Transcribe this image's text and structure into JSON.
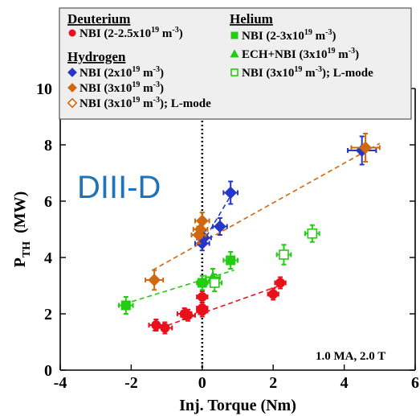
{
  "chart_data": {
    "type": "scatter",
    "title": "",
    "xlabel": "Inj. Torque (Nm)",
    "ylabel": "P",
    "ylabel_sub": "TH",
    "ylabel_unit": "(MW)",
    "xlim": [
      -4,
      6
    ],
    "ylim": [
      0,
      10
    ],
    "x_ticks": [
      "-4",
      "-2",
      "0",
      "2",
      "4",
      "6"
    ],
    "y_ticks": [
      "0",
      "2",
      "4",
      "6",
      "8",
      "10"
    ],
    "grid": false,
    "vertical_dotted_line_at_x": 0,
    "brand_label": "DIII-D",
    "annotation": "1.0 MA, 2.0 T",
    "legend": {
      "placement": "top",
      "groups": [
        {
          "heading": "Deuterium",
          "entries": [
            {
              "label": "NBI  (2-2.5x10",
              "exp": "19",
              "unit": " m",
              "unit_exp": "-3",
              "tail": ")",
              "marker": "circle",
              "color": "#e8101a",
              "filled": true
            }
          ]
        },
        {
          "heading": "Hydrogen",
          "entries": [
            {
              "label": "NBI (2x10",
              "exp": "19",
              "unit": " m",
              "unit_exp": "-3",
              "tail": ")",
              "marker": "diamond",
              "color": "#2536c8",
              "filled": true
            },
            {
              "label": "NBI (3x10",
              "exp": "19",
              "unit": " m",
              "unit_exp": "-3",
              "tail": ")",
              "marker": "diamond",
              "color": "#d2680e",
              "filled": true
            },
            {
              "label": "NBI (3x10",
              "exp": "19",
              "unit": " m",
              "unit_exp": "-3",
              "tail": "); L-mode",
              "marker": "diamond",
              "color": "#d2680e",
              "filled": false
            }
          ]
        },
        {
          "heading": "Helium",
          "entries": [
            {
              "label": "NBI  (2-3x10",
              "exp": "19",
              "unit": " m",
              "unit_exp": "-3",
              "tail": ")",
              "marker": "square",
              "color": "#22cc11",
              "filled": true
            },
            {
              "label": "ECH+NBI  (3x10",
              "exp": "19",
              "unit": " m",
              "unit_exp": "-3",
              "tail": ")",
              "marker": "triangle",
              "color": "#22cc11",
              "filled": true
            },
            {
              "label": "NBI  (3x10",
              "exp": "19",
              "unit": " m",
              "unit_exp": "-3",
              "tail": "); L-mode",
              "marker": "square",
              "color": "#22cc11",
              "filled": false
            }
          ]
        }
      ]
    },
    "series": [
      {
        "group": "Deuterium",
        "name": "NBI (2-2.5x10^19 m^-3)",
        "marker": "circle",
        "color": "#e8101a",
        "filled": true,
        "points": [
          {
            "x": -1.3,
            "y": 1.6,
            "xerr": 0.2,
            "yerr": 0.2
          },
          {
            "x": -1.05,
            "y": 1.5,
            "xerr": 0.2,
            "yerr": 0.2
          },
          {
            "x": -0.5,
            "y": 2.0,
            "xerr": 0.2,
            "yerr": 0.2
          },
          {
            "x": -0.4,
            "y": 1.95,
            "xerr": 0.2,
            "yerr": 0.2
          },
          {
            "x": 0.0,
            "y": 2.1,
            "xerr": 0.15,
            "yerr": 0.2
          },
          {
            "x": 0.0,
            "y": 2.2,
            "xerr": 0.15,
            "yerr": 0.2
          },
          {
            "x": 0.0,
            "y": 2.6,
            "xerr": 0.15,
            "yerr": 0.2
          },
          {
            "x": 2.0,
            "y": 2.7,
            "xerr": 0.15,
            "yerr": 0.2
          },
          {
            "x": 2.2,
            "y": 3.1,
            "xerr": 0.15,
            "yerr": 0.2
          }
        ]
      },
      {
        "group": "Hydrogen",
        "name": "NBI (2x10^19 m^-3)",
        "marker": "diamond",
        "color": "#2536c8",
        "filled": true,
        "points": [
          {
            "x": 0.0,
            "y": 4.5,
            "xerr": 0.2,
            "yerr": 0.25
          },
          {
            "x": 0.05,
            "y": 4.7,
            "xerr": 0.2,
            "yerr": 0.25
          },
          {
            "x": 0.5,
            "y": 5.1,
            "xerr": 0.2,
            "yerr": 0.3
          },
          {
            "x": 0.8,
            "y": 6.3,
            "xerr": 0.2,
            "yerr": 0.4
          },
          {
            "x": 4.5,
            "y": 7.8,
            "xerr": 0.4,
            "yerr": 0.5
          }
        ]
      },
      {
        "group": "Hydrogen",
        "name": "NBI (3x10^19 m^-3)",
        "marker": "diamond",
        "color": "#d2680e",
        "filled": true,
        "points": [
          {
            "x": -1.35,
            "y": 3.2,
            "xerr": 0.25,
            "yerr": 0.35
          },
          {
            "x": -0.1,
            "y": 4.8,
            "xerr": 0.2,
            "yerr": 0.3
          },
          {
            "x": -0.05,
            "y": 5.0,
            "xerr": 0.2,
            "yerr": 0.3
          },
          {
            "x": 0.0,
            "y": 5.3,
            "xerr": 0.2,
            "yerr": 0.3
          },
          {
            "x": 4.6,
            "y": 7.9,
            "xerr": 0.4,
            "yerr": 0.5
          }
        ]
      },
      {
        "group": "Helium",
        "name": "NBI (2-3x10^19 m^-3)",
        "marker": "square",
        "color": "#22cc11",
        "filled": true,
        "points": [
          {
            "x": -2.15,
            "y": 2.3,
            "xerr": 0.2,
            "yerr": 0.3
          },
          {
            "x": 0.0,
            "y": 3.1,
            "xerr": 0.15,
            "yerr": 0.25
          },
          {
            "x": 0.8,
            "y": 3.9,
            "xerr": 0.2,
            "yerr": 0.3
          }
        ]
      },
      {
        "group": "Helium",
        "name": "ECH+NBI (3x10^19 m^-3)",
        "marker": "triangle",
        "color": "#22cc11",
        "filled": true,
        "points": [
          {
            "x": 0.3,
            "y": 3.3,
            "xerr": 0.2,
            "yerr": 0.3
          }
        ]
      },
      {
        "group": "Helium",
        "name": "NBI (3x10^19 m^-3); L-mode",
        "marker": "square",
        "color": "#22cc11",
        "filled": false,
        "points": [
          {
            "x": 0.35,
            "y": 3.1,
            "xerr": 0.2,
            "yerr": 0.3
          },
          {
            "x": 2.3,
            "y": 4.1,
            "xerr": 0.2,
            "yerr": 0.35
          },
          {
            "x": 3.1,
            "y": 4.85,
            "xerr": 0.2,
            "yerr": 0.3
          }
        ]
      }
    ],
    "fit_lines": [
      {
        "color": "#d2680e",
        "x": [
          -1.4,
          5.0
        ],
        "y": [
          3.55,
          8.05
        ]
      },
      {
        "color": "#2536c8",
        "x": [
          0.0,
          0.9
        ],
        "y": [
          4.5,
          6.4
        ]
      },
      {
        "color": "#22cc11",
        "x": [
          -2.2,
          0.9
        ],
        "y": [
          2.35,
          3.55
        ]
      },
      {
        "color": "#e8101a",
        "x": [
          -1.4,
          2.3
        ],
        "y": [
          1.4,
          3.05
        ]
      }
    ]
  }
}
